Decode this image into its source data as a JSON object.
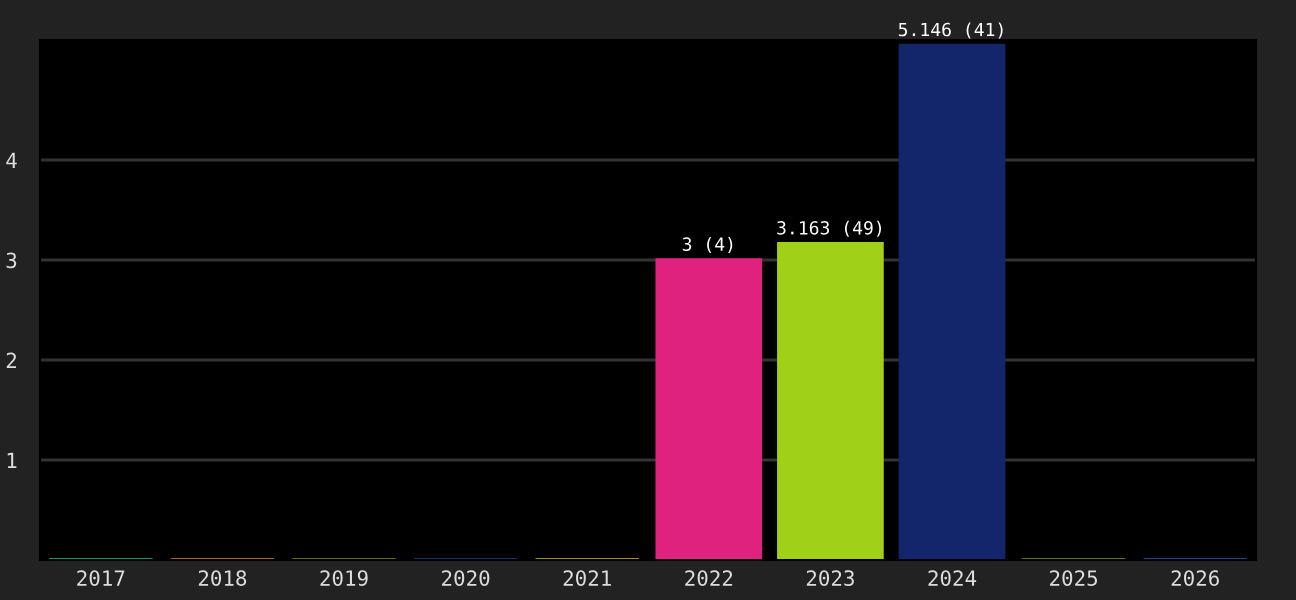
{
  "chart_data": {
    "type": "bar",
    "categories": [
      "2017",
      "2018",
      "2019",
      "2020",
      "2021",
      "2022",
      "2023",
      "2024",
      "2025",
      "2026"
    ],
    "values": [
      0,
      0,
      0,
      0,
      0,
      3,
      3.163,
      5.146,
      0,
      0
    ],
    "colors": [
      "#1fc98a",
      "#d98538",
      "#8a8a1a",
      "#1f3d99",
      "#d9c21f",
      "#e0227f",
      "#a0d018",
      "#13266b",
      "#6aa02a",
      "#2a5cc8"
    ],
    "value_labels": [
      null,
      null,
      null,
      null,
      null,
      "3 (4)",
      "3.163 (49)",
      "5.146 (41)",
      null,
      null
    ],
    "ylim": [
      0,
      5.2
    ],
    "yticks": [
      1,
      2,
      3,
      4
    ],
    "grid": "y",
    "legend": false
  }
}
